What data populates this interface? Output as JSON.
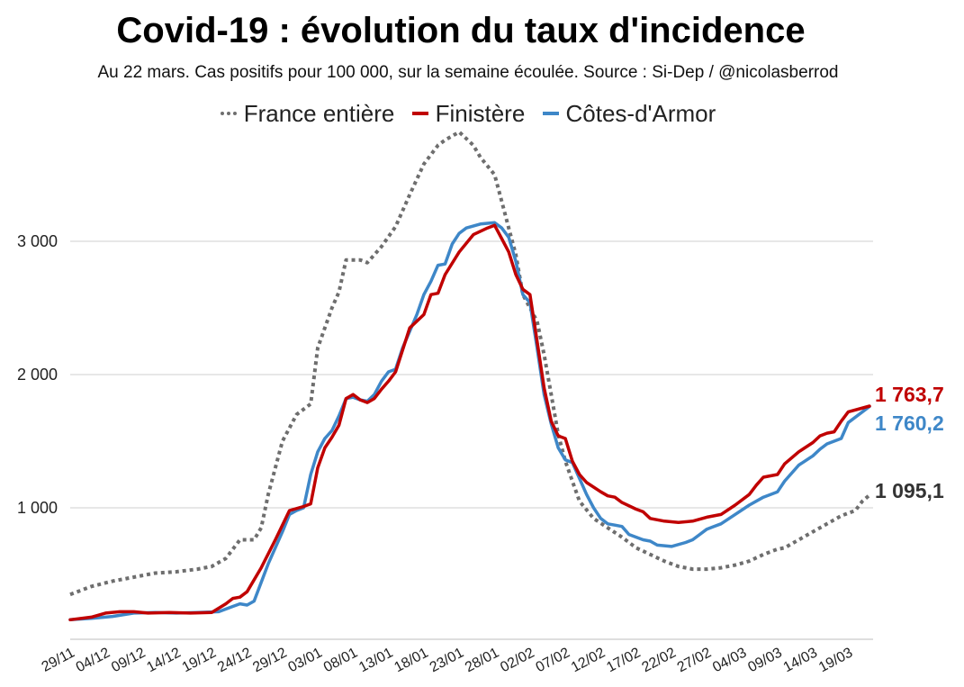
{
  "chart_data": {
    "type": "line",
    "title": "Covid-19 : évolution du taux d'incidence",
    "subtitle": "Au 22 mars. Cas positifs pour 100 000, sur la semaine écoulée. Source : Si-Dep / @nicolasberrod",
    "xlabel": "",
    "ylabel": "",
    "ylim": [
      0,
      3900
    ],
    "yticks": [
      1000,
      2000,
      3000
    ],
    "ytick_labels": [
      "1 000",
      "2 000",
      "3 000"
    ],
    "grid": "horizontal",
    "legend_position": "top",
    "x_tick_labels": [
      "29/11",
      "04/12",
      "09/12",
      "14/12",
      "19/12",
      "24/12",
      "29/12",
      "03/01",
      "08/01",
      "13/01",
      "18/01",
      "23/01",
      "28/01",
      "02/02",
      "07/02",
      "12/02",
      "17/02",
      "22/02",
      "27/02",
      "04/03",
      "09/03",
      "14/03",
      "19/03"
    ],
    "x_tick_days": [
      0,
      5,
      10,
      15,
      20,
      25,
      30,
      35,
      40,
      45,
      50,
      55,
      60,
      65,
      70,
      75,
      80,
      85,
      90,
      95,
      100,
      105,
      110
    ],
    "x_range_days": [
      0,
      113
    ],
    "series": [
      {
        "name": "France entière",
        "color": "#6e6e6e",
        "style": "dotted",
        "end_label": "1 095,1",
        "points": [
          [
            0,
            350
          ],
          [
            3,
            410
          ],
          [
            6,
            450
          ],
          [
            9,
            480
          ],
          [
            12,
            510
          ],
          [
            15,
            520
          ],
          [
            18,
            540
          ],
          [
            20,
            560
          ],
          [
            22,
            620
          ],
          [
            24,
            760
          ],
          [
            26,
            760
          ],
          [
            27,
            850
          ],
          [
            28,
            1100
          ],
          [
            30,
            1500
          ],
          [
            32,
            1700
          ],
          [
            34,
            1780
          ],
          [
            35,
            2200
          ],
          [
            37,
            2500
          ],
          [
            38,
            2620
          ],
          [
            39,
            2860
          ],
          [
            41,
            2860
          ],
          [
            42,
            2840
          ],
          [
            44,
            2960
          ],
          [
            46,
            3110
          ],
          [
            48,
            3350
          ],
          [
            50,
            3580
          ],
          [
            52,
            3720
          ],
          [
            53,
            3760
          ],
          [
            55,
            3820
          ],
          [
            57,
            3720
          ],
          [
            58,
            3630
          ],
          [
            60,
            3500
          ],
          [
            61,
            3300
          ],
          [
            62,
            3100
          ],
          [
            63,
            2900
          ],
          [
            64,
            2600
          ],
          [
            65,
            2500
          ],
          [
            66,
            2400
          ],
          [
            67,
            2150
          ],
          [
            68,
            1850
          ],
          [
            69,
            1550
          ],
          [
            70,
            1350
          ],
          [
            71,
            1200
          ],
          [
            72,
            1050
          ],
          [
            74,
            920
          ],
          [
            76,
            850
          ],
          [
            78,
            780
          ],
          [
            80,
            700
          ],
          [
            82,
            650
          ],
          [
            84,
            600
          ],
          [
            86,
            560
          ],
          [
            88,
            540
          ],
          [
            90,
            540
          ],
          [
            92,
            550
          ],
          [
            94,
            570
          ],
          [
            96,
            600
          ],
          [
            98,
            650
          ],
          [
            100,
            690
          ],
          [
            101,
            700
          ],
          [
            103,
            760
          ],
          [
            105,
            820
          ],
          [
            107,
            880
          ],
          [
            109,
            940
          ],
          [
            110,
            960
          ],
          [
            111,
            980
          ],
          [
            112,
            1050
          ],
          [
            113,
            1095.1
          ]
        ]
      },
      {
        "name": "Finistère",
        "color": "#c00000",
        "style": "solid",
        "end_label": "1 763,7",
        "points": [
          [
            0,
            160
          ],
          [
            3,
            180
          ],
          [
            5,
            210
          ],
          [
            7,
            220
          ],
          [
            9,
            220
          ],
          [
            11,
            210
          ],
          [
            14,
            215
          ],
          [
            17,
            210
          ],
          [
            20,
            215
          ],
          [
            22,
            280
          ],
          [
            23,
            320
          ],
          [
            24,
            330
          ],
          [
            25,
            370
          ],
          [
            27,
            550
          ],
          [
            29,
            760
          ],
          [
            31,
            980
          ],
          [
            33,
            1010
          ],
          [
            34,
            1030
          ],
          [
            35,
            1300
          ],
          [
            36,
            1450
          ],
          [
            37,
            1530
          ],
          [
            38,
            1620
          ],
          [
            39,
            1820
          ],
          [
            40,
            1850
          ],
          [
            41,
            1810
          ],
          [
            42,
            1790
          ],
          [
            43,
            1820
          ],
          [
            44,
            1890
          ],
          [
            45,
            1950
          ],
          [
            46,
            2020
          ],
          [
            48,
            2350
          ],
          [
            50,
            2450
          ],
          [
            51,
            2600
          ],
          [
            52,
            2610
          ],
          [
            53,
            2750
          ],
          [
            55,
            2920
          ],
          [
            57,
            3050
          ],
          [
            59,
            3100
          ],
          [
            60,
            3120
          ],
          [
            61,
            3020
          ],
          [
            62,
            2920
          ],
          [
            63,
            2750
          ],
          [
            64,
            2640
          ],
          [
            65,
            2600
          ],
          [
            66,
            2250
          ],
          [
            67,
            1900
          ],
          [
            68,
            1650
          ],
          [
            69,
            1540
          ],
          [
            70,
            1520
          ],
          [
            71,
            1350
          ],
          [
            72,
            1250
          ],
          [
            73,
            1190
          ],
          [
            75,
            1120
          ],
          [
            76,
            1090
          ],
          [
            77,
            1080
          ],
          [
            78,
            1040
          ],
          [
            80,
            990
          ],
          [
            81,
            970
          ],
          [
            82,
            920
          ],
          [
            84,
            900
          ],
          [
            86,
            890
          ],
          [
            88,
            900
          ],
          [
            90,
            930
          ],
          [
            92,
            950
          ],
          [
            94,
            1020
          ],
          [
            96,
            1100
          ],
          [
            97,
            1170
          ],
          [
            98,
            1230
          ],
          [
            100,
            1250
          ],
          [
            101,
            1330
          ],
          [
            103,
            1420
          ],
          [
            105,
            1490
          ],
          [
            106,
            1540
          ],
          [
            107,
            1560
          ],
          [
            108,
            1570
          ],
          [
            109,
            1650
          ],
          [
            110,
            1720
          ],
          [
            113,
            1763.7
          ]
        ]
      },
      {
        "name": "Côtes-d'Armor",
        "color": "#3e87c8",
        "style": "solid",
        "end_label": "1 760,2",
        "points": [
          [
            0,
            160
          ],
          [
            3,
            170
          ],
          [
            6,
            185
          ],
          [
            9,
            210
          ],
          [
            12,
            215
          ],
          [
            15,
            210
          ],
          [
            18,
            215
          ],
          [
            21,
            220
          ],
          [
            23,
            260
          ],
          [
            24,
            280
          ],
          [
            25,
            270
          ],
          [
            26,
            300
          ],
          [
            28,
            580
          ],
          [
            30,
            820
          ],
          [
            31,
            950
          ],
          [
            32,
            980
          ],
          [
            33,
            1000
          ],
          [
            34,
            1250
          ],
          [
            35,
            1420
          ],
          [
            36,
            1520
          ],
          [
            37,
            1580
          ],
          [
            38,
            1690
          ],
          [
            39,
            1820
          ],
          [
            40,
            1830
          ],
          [
            41,
            1810
          ],
          [
            42,
            1800
          ],
          [
            43,
            1850
          ],
          [
            44,
            1950
          ],
          [
            45,
            2020
          ],
          [
            46,
            2040
          ],
          [
            47,
            2200
          ],
          [
            49,
            2450
          ],
          [
            50,
            2600
          ],
          [
            51,
            2700
          ],
          [
            52,
            2820
          ],
          [
            53,
            2830
          ],
          [
            54,
            2980
          ],
          [
            55,
            3060
          ],
          [
            56,
            3100
          ],
          [
            58,
            3130
          ],
          [
            60,
            3140
          ],
          [
            61,
            3100
          ],
          [
            62,
            3030
          ],
          [
            63,
            2850
          ],
          [
            64,
            2600
          ],
          [
            65,
            2540
          ],
          [
            66,
            2200
          ],
          [
            67,
            1850
          ],
          [
            68,
            1630
          ],
          [
            69,
            1450
          ],
          [
            70,
            1360
          ],
          [
            71,
            1340
          ],
          [
            72,
            1220
          ],
          [
            73,
            1100
          ],
          [
            74,
            1000
          ],
          [
            75,
            920
          ],
          [
            76,
            880
          ],
          [
            77,
            870
          ],
          [
            78,
            860
          ],
          [
            79,
            800
          ],
          [
            81,
            760
          ],
          [
            82,
            750
          ],
          [
            83,
            720
          ],
          [
            85,
            710
          ],
          [
            87,
            740
          ],
          [
            88,
            760
          ],
          [
            89,
            800
          ],
          [
            90,
            840
          ],
          [
            91,
            860
          ],
          [
            92,
            880
          ],
          [
            94,
            950
          ],
          [
            96,
            1020
          ],
          [
            98,
            1080
          ],
          [
            99,
            1100
          ],
          [
            100,
            1120
          ],
          [
            101,
            1200
          ],
          [
            103,
            1320
          ],
          [
            105,
            1390
          ],
          [
            106,
            1440
          ],
          [
            107,
            1480
          ],
          [
            108,
            1500
          ],
          [
            109,
            1520
          ],
          [
            110,
            1640
          ],
          [
            113,
            1760.2
          ]
        ]
      }
    ]
  }
}
